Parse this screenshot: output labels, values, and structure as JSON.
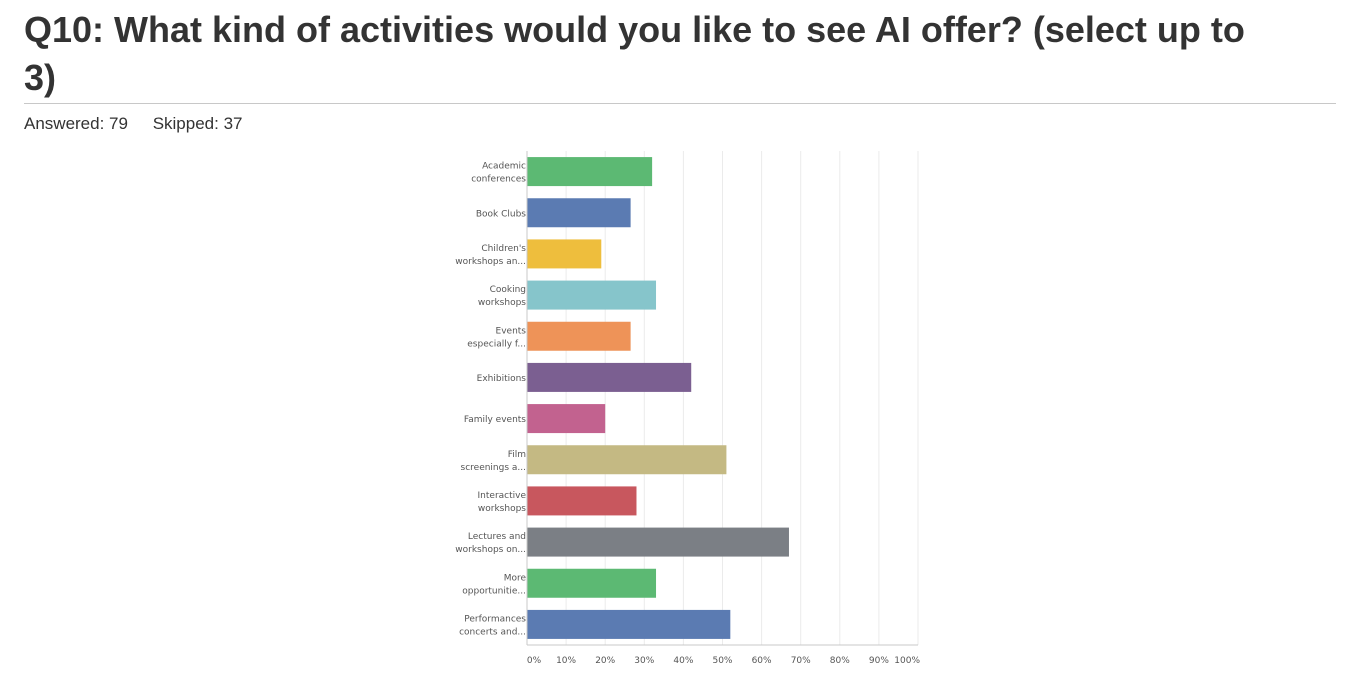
{
  "question": {
    "title": "Q10: What kind of activities would you like to see AI offer? (select up to 3)",
    "answered_label": "Answered: 79",
    "skipped_label": "Skipped: 37"
  },
  "chart_data": {
    "type": "bar",
    "orientation": "horizontal",
    "categories": [
      [
        "Academic",
        "conferences"
      ],
      [
        "Book Clubs"
      ],
      [
        "Children's",
        "workshops an..."
      ],
      [
        "Cooking",
        "workshops"
      ],
      [
        "Events",
        "especially f..."
      ],
      [
        "Exhibitions"
      ],
      [
        "Family events"
      ],
      [
        "Film",
        "screenings a..."
      ],
      [
        "Interactive",
        "workshops"
      ],
      [
        "Lectures and",
        "workshops on..."
      ],
      [
        "More",
        "opportunitie..."
      ],
      [
        "Performances",
        "concerts and..."
      ]
    ],
    "values": [
      32,
      26.5,
      19,
      33,
      26.5,
      42,
      20,
      51,
      28,
      67,
      33,
      52
    ],
    "colors": [
      "#5cb973",
      "#5b7bb2",
      "#eebe3d",
      "#86c5cb",
      "#ee9358",
      "#7b5f91",
      "#c2628f",
      "#c4b983",
      "#c8575e",
      "#7b7f85",
      "#5cb973",
      "#5b7bb2"
    ],
    "xlim": [
      0,
      100
    ],
    "x_ticks": [
      "0%",
      "10%",
      "20%",
      "30%",
      "40%",
      "50%",
      "60%",
      "70%",
      "80%",
      "90%",
      "100%"
    ],
    "x_tick_values": [
      0,
      10,
      20,
      30,
      40,
      50,
      60,
      70,
      80,
      90,
      100
    ],
    "grid": true,
    "xlabel": "",
    "ylabel": ""
  }
}
